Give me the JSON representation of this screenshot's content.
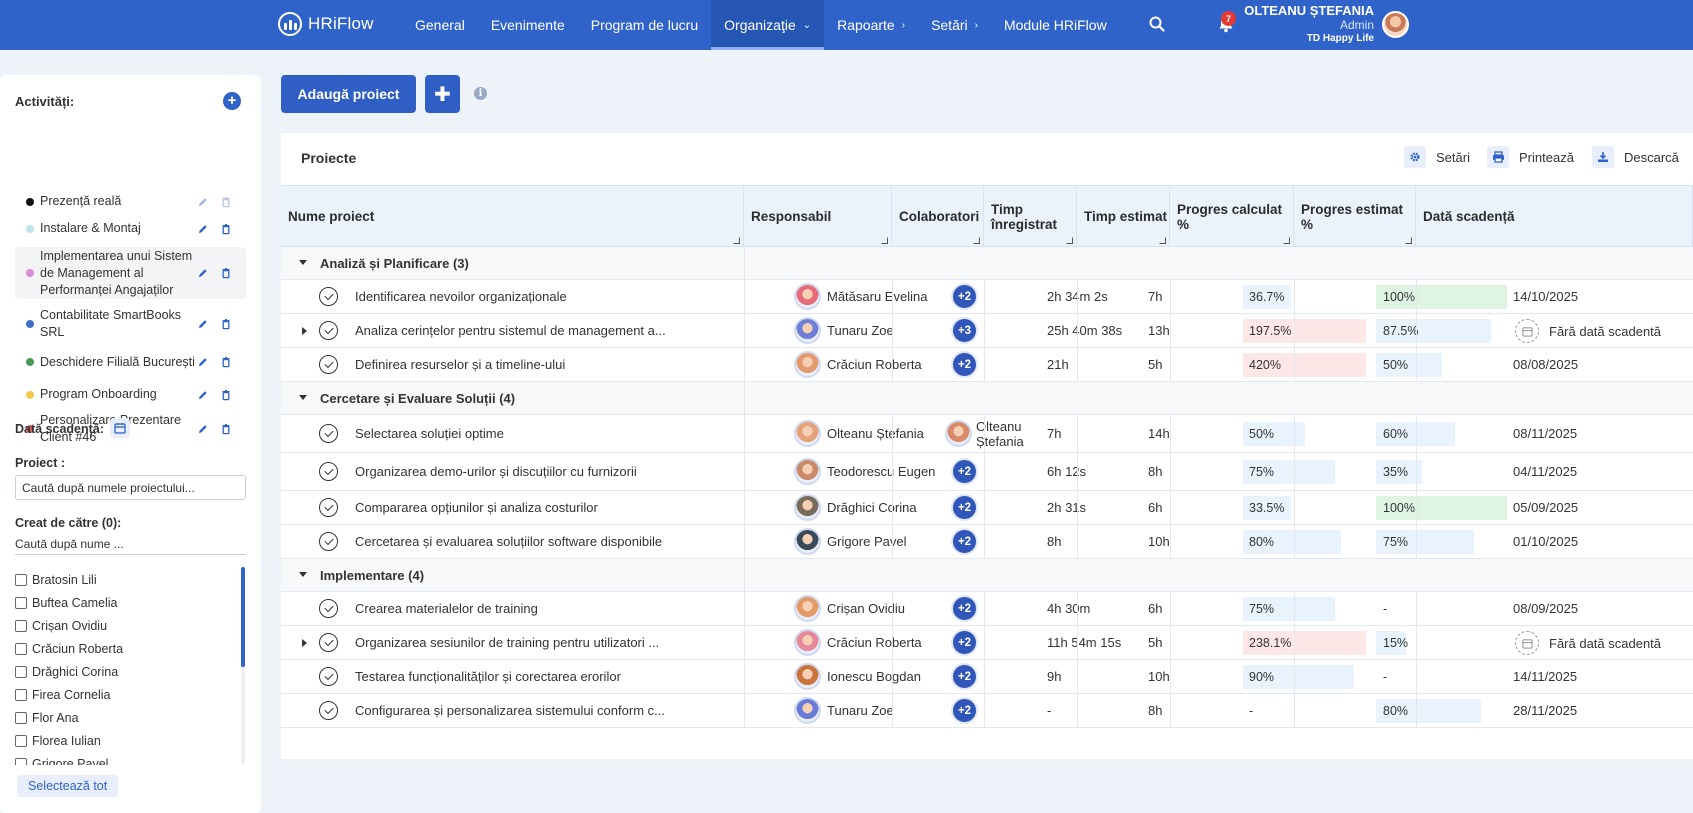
{
  "app": {
    "name": "HRiFlow"
  },
  "nav": {
    "items": [
      {
        "label": "General",
        "chevron": ""
      },
      {
        "label": "Evenimente",
        "chevron": ""
      },
      {
        "label": "Program de lucru",
        "chevron": ""
      },
      {
        "label": "Organizaţie",
        "chevron": "⌄",
        "active": true
      },
      {
        "label": "Rapoarte",
        "chevron": "›"
      },
      {
        "label": "Setări",
        "chevron": "›"
      },
      {
        "label": "Module HRiFlow",
        "chevron": ""
      }
    ],
    "notifications": "7"
  },
  "user": {
    "name": "OLTEANU ȘTEFANIA",
    "role": "Admin",
    "company": "TD Happy Life"
  },
  "sidebar": {
    "activities_title": "Activități:",
    "activities": [
      {
        "label": "Prezență reală",
        "color": "#111111"
      },
      {
        "label": "Instalare & Montaj",
        "color": "#bfe3ef"
      },
      {
        "label": "Implementarea unui Sistem de Management al Performanței Angajaților",
        "color": "#d88bd8"
      },
      {
        "label": "Contabilitate SmartBooks SRL",
        "color": "#3d6fc6"
      },
      {
        "label": "Deschidere Filială București",
        "color": "#4c9a57"
      },
      {
        "label": "Program Onboarding",
        "color": "#f4c84d"
      },
      {
        "label": "Personalizare Prezentare Client #46",
        "color": "#e25b5b"
      }
    ],
    "due_label": "Dată scadență:",
    "project_label": "Proiect :",
    "project_placeholder": "Caută după numele proiectului...",
    "creator_label": "Creat de către (0):",
    "creator_placeholder": "Caută după nume ...",
    "creators": [
      "Bratosin Lili",
      "Buftea Camelia",
      "Crișan Ovidiu",
      "Crăciun Roberta",
      "Drăghici Corina",
      "Firea Cornelia",
      "Flor Ana",
      "Florea Iulian",
      "Grigore Pavel"
    ],
    "select_all": "Selectează tot"
  },
  "toolbar": {
    "add_project": "Adaugă proiect",
    "plus": "✚",
    "info": "i"
  },
  "card": {
    "title": "Proiecte",
    "settings": "Setări",
    "print": "Printează",
    "download": "Descarcă"
  },
  "table": {
    "headers": [
      "Nume proiect",
      "Responsabil",
      "Colaboratori",
      "Timp înregistrat",
      "Timp estimat",
      "Progres calculat %",
      "Progres estimat %",
      "Dată scadență"
    ],
    "groups": [
      {
        "label": "Analiză și Planificare (3)",
        "rows": [
          {
            "name": "Identificarea nevoilor organizaționale",
            "owner": "Mătăsaru Evelina",
            "collab": "+2",
            "logged": "2h 34m 2s",
            "estimated": "7h",
            "calc": "36.7%",
            "calc_pct": 36.7,
            "calc_color": "bl",
            "est": "100%",
            "est_pct": 100,
            "est_color": "gr",
            "due": "14/10/2025"
          },
          {
            "name": "Analiza cerințelor pentru sistemul de management a...",
            "owner": "Tunaru Zoe",
            "collab": "+3",
            "logged": "25h 40m 38s",
            "estimated": "13h",
            "calc": "197.5%",
            "calc_pct": 197.5,
            "calc_color": "rd",
            "est": "87.5%",
            "est_pct": 87.5,
            "est_color": "bl",
            "due": "Fără dată scadentă",
            "expand": true
          },
          {
            "name": "Definirea resurselor și a timeline-ului",
            "owner": "Crăciun Roberta",
            "collab": "+2",
            "logged": "21h",
            "estimated": "5h",
            "calc": "420%",
            "calc_pct": 420,
            "calc_color": "rd",
            "est": "50%",
            "est_pct": 50,
            "est_color": "bl",
            "due": "08/08/2025"
          }
        ]
      },
      {
        "label": "Cercetare și Evaluare Soluții (4)",
        "rows": [
          {
            "name": "Selectarea soluției optime",
            "owner": "Olteanu Ștefania",
            "collab_name": "Olteanu Ștefania",
            "logged": "7h",
            "estimated": "14h",
            "calc": "50%",
            "calc_pct": 50,
            "calc_color": "bl",
            "est": "60%",
            "est_pct": 60,
            "est_color": "bl",
            "due": "08/11/2025"
          },
          {
            "name": "Organizarea demo-urilor și discuțiilor cu furnizorii",
            "owner": "Teodorescu Eugen",
            "collab": "+2",
            "logged": "6h 12s",
            "estimated": "8h",
            "calc": "75%",
            "calc_pct": 75,
            "calc_color": "bl",
            "est": "35%",
            "est_pct": 35,
            "est_color": "bl",
            "due": "04/11/2025"
          },
          {
            "name": "Compararea opțiunilor și analiza costurilor",
            "owner": "Drăghici Corina",
            "collab": "+2",
            "logged": "2h 31s",
            "estimated": "6h",
            "calc": "33.5%",
            "calc_pct": 33.5,
            "calc_color": "bl",
            "est": "100%",
            "est_pct": 100,
            "est_color": "gr",
            "due": "05/09/2025"
          },
          {
            "name": "Cercetarea și evaluarea soluțiilor software disponibile",
            "owner": "Grigore Pavel",
            "collab": "+2",
            "logged": "8h",
            "estimated": "10h",
            "calc": "80%",
            "calc_pct": 80,
            "calc_color": "bl",
            "est": "75%",
            "est_pct": 75,
            "est_color": "bl",
            "due": "01/10/2025"
          }
        ]
      },
      {
        "label": "Implementare (4)",
        "rows": [
          {
            "name": "Crearea materialelor de training",
            "owner": "Crișan Ovidiu",
            "collab": "+2",
            "logged": "4h 30m",
            "estimated": "6h",
            "calc": "75%",
            "calc_pct": 75,
            "calc_color": "bl",
            "est": "-",
            "est_pct": 0,
            "est_color": "",
            "due": "08/09/2025"
          },
          {
            "name": "Organizarea sesiunilor de training pentru utilizatori ...",
            "owner": "Crăciun Roberta",
            "collab": "+2",
            "logged": "11h 54m 15s",
            "estimated": "5h",
            "calc": "238.1%",
            "calc_pct": 238.1,
            "calc_color": "rd",
            "est": "15%",
            "est_pct": 15,
            "est_color": "bl",
            "due": "Fără dată scadentă",
            "expand": true
          },
          {
            "name": "Testarea funcționalităților și corectarea erorilor",
            "owner": "Ionescu Bogdan",
            "collab": "+2",
            "logged": "9h",
            "estimated": "10h",
            "calc": "90%",
            "calc_pct": 90,
            "calc_color": "bl",
            "est": "-",
            "est_pct": 0,
            "est_color": "",
            "due": "14/11/2025"
          },
          {
            "name": "Configurarea și personalizarea sistemului conform c...",
            "owner": "Tunaru Zoe",
            "collab": "+2",
            "logged": "-",
            "estimated": "8h",
            "calc": "-",
            "calc_pct": 0,
            "calc_color": "",
            "est": "80%",
            "est_pct": 80,
            "est_color": "bl",
            "due": "28/11/2025"
          }
        ]
      }
    ]
  }
}
